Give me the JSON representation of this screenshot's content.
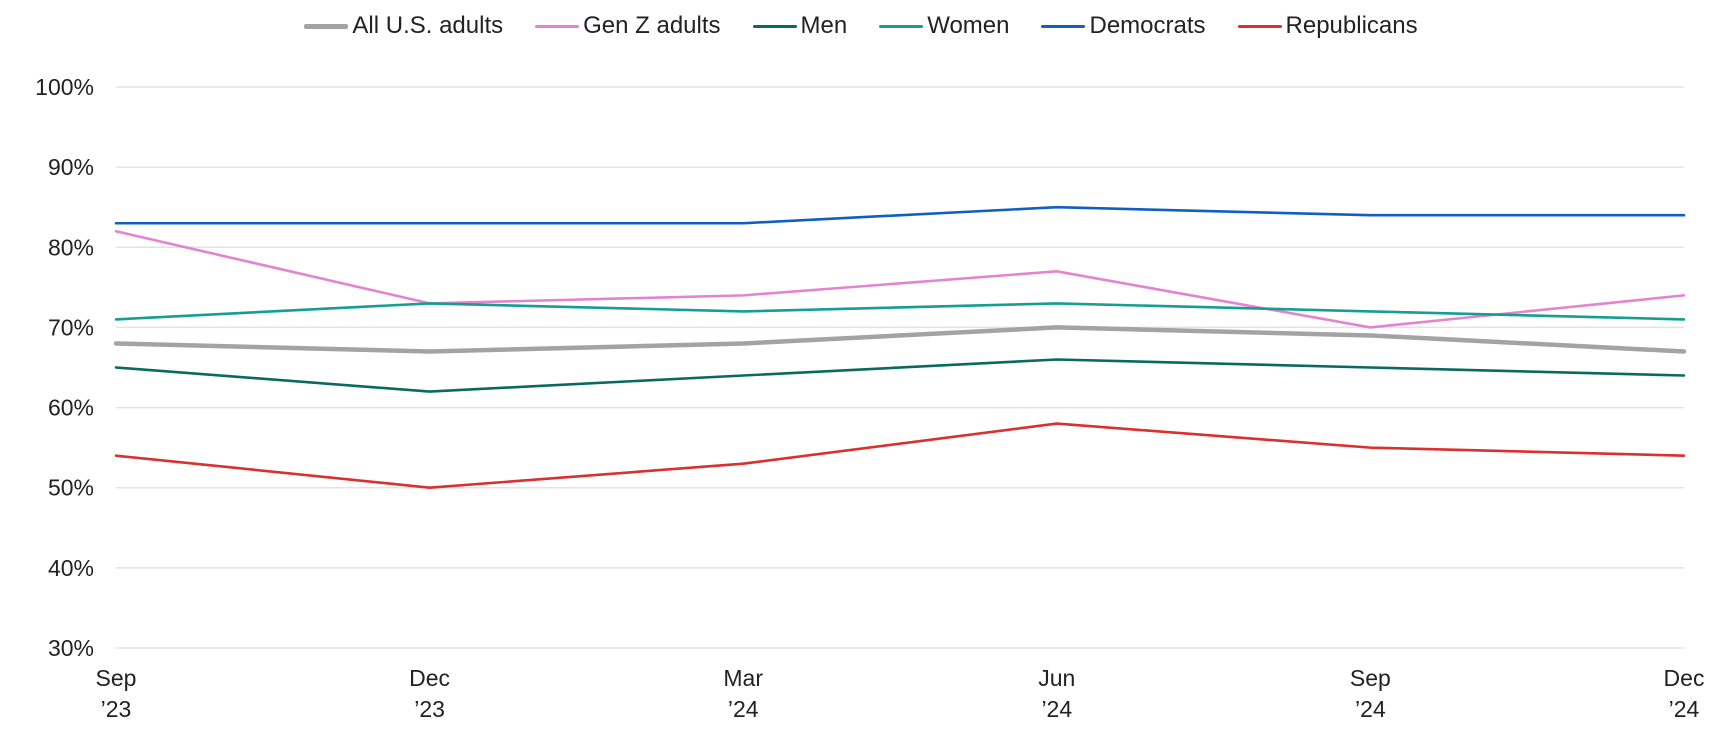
{
  "chart_data": {
    "type": "line",
    "title": "",
    "xlabel": "",
    "ylabel": "",
    "x": [
      [
        "Sep",
        "’23"
      ],
      [
        "Dec",
        "’23"
      ],
      [
        "Mar",
        "’24"
      ],
      [
        "Jun",
        "’24"
      ],
      [
        "Sep",
        "’24"
      ],
      [
        "Dec",
        "’24"
      ]
    ],
    "ylim": [
      30,
      100
    ],
    "yticks": [
      30,
      40,
      50,
      60,
      70,
      80,
      90,
      100
    ],
    "ytick_labels": [
      "30%",
      "40%",
      "50%",
      "60%",
      "70%",
      "80%",
      "90%",
      "100%"
    ],
    "grid": true,
    "legend_position": "top-center",
    "series": [
      {
        "name": "All U.S. adults",
        "color": "#a3a3a3",
        "thick": true,
        "values": [
          68,
          67,
          68,
          70,
          69,
          67
        ]
      },
      {
        "name": "Gen Z adults",
        "color": "#e284cf",
        "thick": false,
        "values": [
          82,
          73,
          74,
          77,
          70,
          74
        ]
      },
      {
        "name": "Men",
        "color": "#0a6a5e",
        "thick": false,
        "values": [
          65,
          62,
          64,
          66,
          65,
          64
        ]
      },
      {
        "name": "Women",
        "color": "#159e92",
        "thick": false,
        "values": [
          71,
          73,
          72,
          73,
          72,
          71
        ]
      },
      {
        "name": "Democrats",
        "color": "#1060c2",
        "thick": false,
        "values": [
          83,
          83,
          83,
          85,
          84,
          84
        ]
      },
      {
        "name": "Republicans",
        "color": "#d93030",
        "thick": false,
        "values": [
          54,
          50,
          53,
          58,
          55,
          54
        ]
      }
    ]
  }
}
